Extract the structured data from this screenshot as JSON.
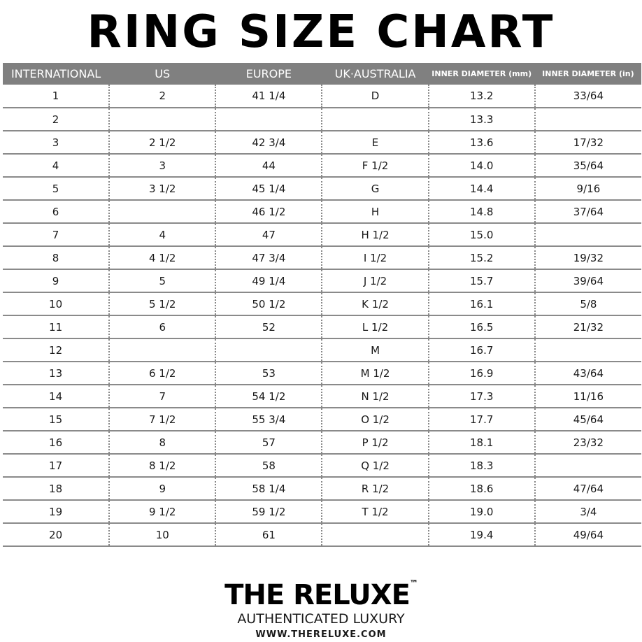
{
  "title": "RING SIZE CHART",
  "table": {
    "headers": [
      "INTERNATIONAL",
      "US",
      "EUROPE",
      "UK·AUSTRALIA",
      "INNER DIAMETER (mm)",
      "INNER DIAMETER (in)"
    ],
    "rows": [
      [
        "1",
        "2",
        "41 1/4",
        "D",
        "13.2",
        "33/64"
      ],
      [
        "2",
        "",
        "",
        "",
        "13.3",
        ""
      ],
      [
        "3",
        "2 1/2",
        "42 3/4",
        "E",
        "13.6",
        "17/32"
      ],
      [
        "4",
        "3",
        "44",
        "F 1/2",
        "14.0",
        "35/64"
      ],
      [
        "5",
        "3 1/2",
        "45 1/4",
        "G",
        "14.4",
        "9/16"
      ],
      [
        "6",
        "",
        "46 1/2",
        "H",
        "14.8",
        "37/64"
      ],
      [
        "7",
        "4",
        "47",
        "H 1/2",
        "15.0",
        ""
      ],
      [
        "8",
        "4 1/2",
        "47 3/4",
        "I 1/2",
        "15.2",
        "19/32"
      ],
      [
        "9",
        "5",
        "49 1/4",
        "J 1/2",
        "15.7",
        "39/64"
      ],
      [
        "10",
        "5 1/2",
        "50 1/2",
        "K 1/2",
        "16.1",
        "5/8"
      ],
      [
        "11",
        "6",
        "52",
        "L 1/2",
        "16.5",
        "21/32"
      ],
      [
        "12",
        "",
        "",
        "M",
        "16.7",
        ""
      ],
      [
        "13",
        "6 1/2",
        "53",
        "M 1/2",
        "16.9",
        "43/64"
      ],
      [
        "14",
        "7",
        "54 1/2",
        "N 1/2",
        "17.3",
        "11/16"
      ],
      [
        "15",
        "7 1/2",
        "55 3/4",
        "O 1/2",
        "17.7",
        "45/64"
      ],
      [
        "16",
        "8",
        "57",
        "P 1/2",
        "18.1",
        "23/32"
      ],
      [
        "17",
        "8 1/2",
        "58",
        "Q 1/2",
        "18.3",
        ""
      ],
      [
        "18",
        "9",
        "58 1/4",
        "R 1/2",
        "18.6",
        "47/64"
      ],
      [
        "19",
        "9 1/2",
        "59 1/2",
        "T 1/2",
        "19.0",
        "3/4"
      ],
      [
        "20",
        "10",
        "61",
        "",
        "19.4",
        "49/64"
      ]
    ]
  },
  "footer": {
    "brand": "THE RELUXE",
    "trademark": "™",
    "tagline": "AUTHENTICATED LUXURY",
    "url": "WWW.THERELUXE.COM"
  },
  "colors": {
    "header_bg": "#808080",
    "header_text": "#ffffff"
  }
}
